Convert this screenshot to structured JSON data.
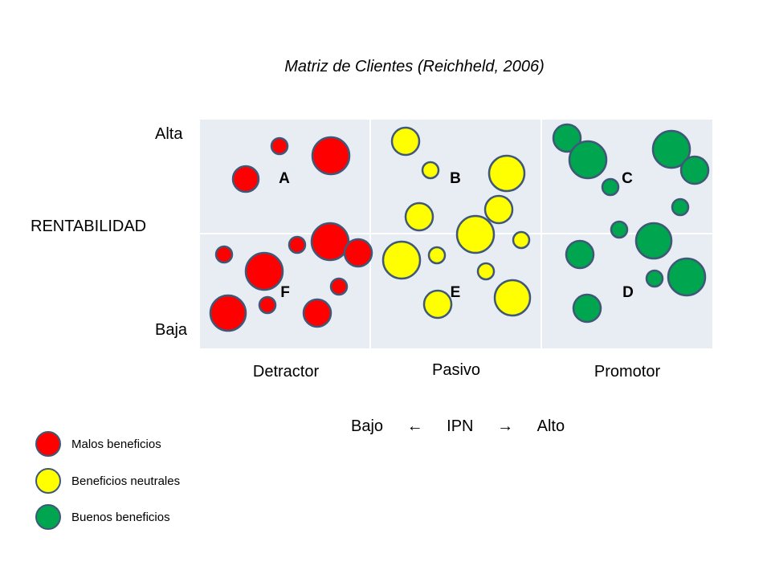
{
  "title": "Matriz de Clientes (Reichheld, 2006)",
  "y_axis": {
    "label": "RENTABILIDAD",
    "high": "Alta",
    "low": "Baja"
  },
  "x_axis": {
    "categories": [
      "Detractor",
      "Pasivo",
      "Promotor"
    ],
    "low": "Bajo",
    "arrow_left": "←",
    "label": "IPN",
    "arrow_right": "→",
    "high": "Alto"
  },
  "quadrants": {
    "A": "A",
    "B": "B",
    "C": "C",
    "D": "D",
    "E": "E",
    "F": "F"
  },
  "colors": {
    "red": "#FF0000",
    "yellow": "#FFFF00",
    "green": "#00A550",
    "outline": "#3F5877",
    "cell": "#E8EDF4"
  },
  "legend": {
    "red": "Malos beneficios",
    "yellow": "Beneficios neutrales",
    "green": "Buenos beneficios"
  }
}
